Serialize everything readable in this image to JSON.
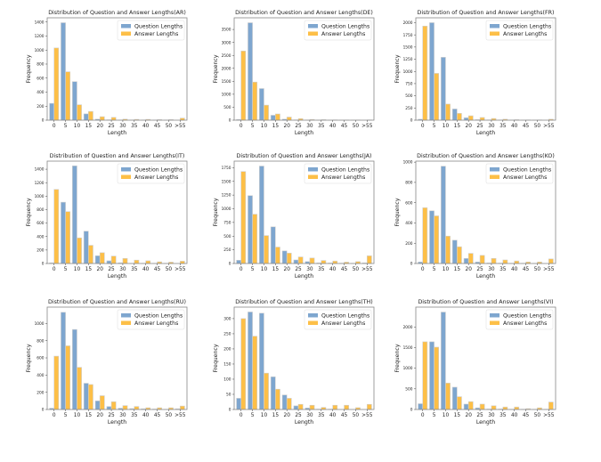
{
  "colors": {
    "question": "#7ea6cf",
    "answer": "#fdbf47",
    "edge": "#d0d0d0",
    "frame": "#888888"
  },
  "chart_data": [
    {
      "type": "bar",
      "title": "Distribution of Question and Answer Lengths(AR)",
      "xlabel": "Length",
      "ylabel": "Frequency",
      "categories": [
        "0",
        "5",
        "10",
        "15",
        "20",
        "25",
        "30",
        "35",
        "40",
        "45",
        "50",
        ">55"
      ],
      "yticks": [
        0,
        200,
        400,
        600,
        800,
        1000,
        1200,
        1400
      ],
      "ylim": [
        0,
        1460
      ],
      "legend": "top-right",
      "series": [
        {
          "name": "Question Lengths",
          "values": [
            240,
            1390,
            550,
            90,
            15,
            5,
            3,
            2,
            2,
            1,
            1,
            0
          ]
        },
        {
          "name": "Answer Lengths",
          "values": [
            1030,
            690,
            220,
            125,
            50,
            40,
            15,
            12,
            12,
            8,
            8,
            30
          ]
        }
      ]
    },
    {
      "type": "bar",
      "title": "Distribution of Question and Answer Lengths(DE)",
      "xlabel": "Length",
      "ylabel": "Frequency",
      "categories": [
        "0",
        "5",
        "10",
        "15",
        "20",
        "25",
        "30",
        "35",
        "40",
        "45",
        "50",
        ">55"
      ],
      "yticks": [
        0,
        500,
        1000,
        1500,
        2000,
        2500,
        3000,
        3500
      ],
      "ylim": [
        0,
        3950
      ],
      "legend": "top-right",
      "series": [
        {
          "name": "Question Lengths",
          "values": [
            30,
            3760,
            1220,
            190,
            40,
            10,
            5,
            3,
            2,
            1,
            1,
            0
          ]
        },
        {
          "name": "Answer Lengths",
          "values": [
            2670,
            1470,
            580,
            240,
            120,
            60,
            30,
            20,
            10,
            8,
            5,
            10
          ]
        }
      ]
    },
    {
      "type": "bar",
      "title": "Distribution of Question and Answer Lengths(FR)",
      "xlabel": "Length",
      "ylabel": "Frequency",
      "categories": [
        "0",
        "5",
        "10",
        "15",
        "20",
        "25",
        "30",
        "35",
        "40",
        "45",
        "50",
        ">55"
      ],
      "yticks": [
        0,
        250,
        500,
        750,
        1000,
        1250,
        1500,
        1750,
        2000
      ],
      "ylim": [
        0,
        2100
      ],
      "legend": "top-right",
      "series": [
        {
          "name": "Question Lengths",
          "values": [
            20,
            2000,
            1290,
            230,
            50,
            10,
            5,
            3,
            2,
            1,
            1,
            0
          ]
        },
        {
          "name": "Answer Lengths",
          "values": [
            1930,
            960,
            330,
            140,
            90,
            55,
            35,
            20,
            10,
            5,
            5,
            20
          ]
        }
      ]
    },
    {
      "type": "bar",
      "title": "Distribution of Question and Answer Lengths(IT)",
      "xlabel": "Length",
      "ylabel": "Frequency",
      "categories": [
        "0",
        "5",
        "10",
        "15",
        "20",
        "25",
        "30",
        "35",
        "40",
        "45",
        "50",
        ">55"
      ],
      "yticks": [
        0,
        200,
        400,
        600,
        800,
        1000,
        1200,
        1400
      ],
      "ylim": [
        0,
        1520
      ],
      "legend": "top-right",
      "series": [
        {
          "name": "Question Lengths",
          "values": [
            10,
            910,
            1450,
            480,
            115,
            40,
            10,
            3,
            2,
            1,
            1,
            0
          ]
        },
        {
          "name": "Answer Lengths",
          "values": [
            1100,
            770,
            380,
            270,
            160,
            110,
            75,
            50,
            40,
            25,
            20,
            35
          ]
        }
      ]
    },
    {
      "type": "bar",
      "title": "Distribution of Question and Answer Lengths(JA)",
      "xlabel": "Length",
      "ylabel": "Frequency",
      "categories": [
        "0",
        "5",
        "10",
        "15",
        "20",
        "25",
        "30",
        "35",
        "40",
        "45",
        "50",
        ">55"
      ],
      "yticks": [
        0,
        250,
        500,
        750,
        1000,
        1250,
        1500,
        1750
      ],
      "ylim": [
        0,
        1870
      ],
      "legend": "top-right",
      "series": [
        {
          "name": "Question Lengths",
          "values": [
            60,
            1240,
            1780,
            670,
            230,
            65,
            35,
            10,
            8,
            5,
            3,
            10
          ]
        },
        {
          "name": "Answer Lengths",
          "values": [
            1680,
            900,
            510,
            300,
            190,
            120,
            100,
            55,
            45,
            25,
            35,
            140
          ]
        }
      ]
    },
    {
      "type": "bar",
      "title": "Distribution of Question and Answer Lengths(KO)",
      "xlabel": "Length",
      "ylabel": "Frequency",
      "categories": [
        "0",
        "5",
        "10",
        "15",
        "20",
        "25",
        "30",
        "35",
        "40",
        "45",
        "50",
        ">55"
      ],
      "yticks": [
        0,
        200,
        400,
        600,
        800,
        1000
      ],
      "ylim": [
        0,
        1010
      ],
      "legend": "top-right",
      "series": [
        {
          "name": "Question Lengths",
          "values": [
            15,
            520,
            960,
            230,
            50,
            15,
            5,
            3,
            2,
            1,
            1,
            0
          ]
        },
        {
          "name": "Answer Lengths",
          "values": [
            550,
            470,
            270,
            165,
            100,
            80,
            50,
            35,
            25,
            15,
            15,
            45
          ]
        }
      ]
    },
    {
      "type": "bar",
      "title": "Distribution of Question and Answer Lengths(RU)",
      "xlabel": "Length",
      "ylabel": "Frequency",
      "categories": [
        "0",
        "5",
        "10",
        "15",
        "20",
        "25",
        "30",
        "35",
        "40",
        "45",
        "50",
        ">55"
      ],
      "yticks": [
        0,
        200,
        400,
        600,
        800,
        1000
      ],
      "ylim": [
        0,
        1190
      ],
      "legend": "top-right",
      "series": [
        {
          "name": "Question Lengths",
          "values": [
            15,
            1130,
            930,
            305,
            100,
            35,
            15,
            10,
            8,
            5,
            2,
            8
          ]
        },
        {
          "name": "Answer Lengths",
          "values": [
            620,
            740,
            490,
            290,
            160,
            90,
            45,
            35,
            20,
            20,
            20,
            40
          ]
        }
      ]
    },
    {
      "type": "bar",
      "title": "Distribution of Question and Answer Lengths(TH)",
      "xlabel": "Length",
      "ylabel": "Frequency",
      "categories": [
        "0",
        "5",
        "10",
        "15",
        "20",
        "25",
        "30",
        "35",
        "40",
        "45",
        "50",
        ">55"
      ],
      "yticks": [
        0,
        50,
        100,
        150,
        200,
        250,
        300
      ],
      "ylim": [
        0,
        338
      ],
      "legend": "top-right",
      "series": [
        {
          "name": "Question Lengths",
          "values": [
            37,
            322,
            318,
            108,
            48,
            12,
            5,
            1,
            1,
            0,
            0,
            0
          ]
        },
        {
          "name": "Answer Lengths",
          "values": [
            300,
            242,
            120,
            67,
            37,
            17,
            14,
            7,
            14,
            14,
            6,
            17
          ]
        }
      ]
    },
    {
      "type": "bar",
      "title": "Distribution of Question and Answer Lengths(VI)",
      "xlabel": "Length",
      "ylabel": "Frequency",
      "categories": [
        "0",
        "5",
        "10",
        "15",
        "20",
        "25",
        "30",
        "35",
        "40",
        "45",
        "50",
        ">55"
      ],
      "yticks": [
        0,
        500,
        1000,
        1500,
        2000
      ],
      "ylim": [
        0,
        2480
      ],
      "legend": "top-right",
      "series": [
        {
          "name": "Question Lengths",
          "values": [
            140,
            1640,
            2360,
            540,
            130,
            40,
            10,
            10,
            5,
            3,
            2,
            5
          ]
        },
        {
          "name": "Answer Lengths",
          "values": [
            1640,
            1510,
            640,
            310,
            190,
            130,
            90,
            60,
            60,
            20,
            40,
            180
          ]
        }
      ]
    }
  ]
}
